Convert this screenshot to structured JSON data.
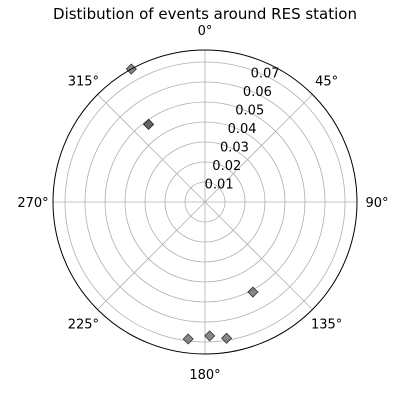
{
  "chart_data": {
    "type": "scatter",
    "projection": "polar",
    "title": "Distibution of events around RES station",
    "theta_direction": "clockwise",
    "theta_zero": "top",
    "angle_ticks": [
      "0°",
      "45°",
      "90°",
      "135°",
      "180°",
      "225°",
      "270°",
      "315°"
    ],
    "angle_tick_values": [
      0,
      45,
      90,
      135,
      180,
      225,
      270,
      315
    ],
    "r_ticks": [
      "0.01",
      "0.02",
      "0.03",
      "0.04",
      "0.05",
      "0.06",
      "0.07"
    ],
    "r_tick_values": [
      0.01,
      0.02,
      0.03,
      0.04,
      0.05,
      0.06,
      0.07
    ],
    "rlim": [
      0,
      0.076
    ],
    "grid": true,
    "marker": "diamond",
    "marker_color": "#555555",
    "points": [
      {
        "theta": 331,
        "r": 0.076
      },
      {
        "theta": 324,
        "r": 0.048
      },
      {
        "theta": 324,
        "r": 0.048
      },
      {
        "theta": 152,
        "r": 0.051
      },
      {
        "theta": 171,
        "r": 0.069
      },
      {
        "theta": 178,
        "r": 0.067
      },
      {
        "theta": 187,
        "r": 0.069
      }
    ]
  }
}
